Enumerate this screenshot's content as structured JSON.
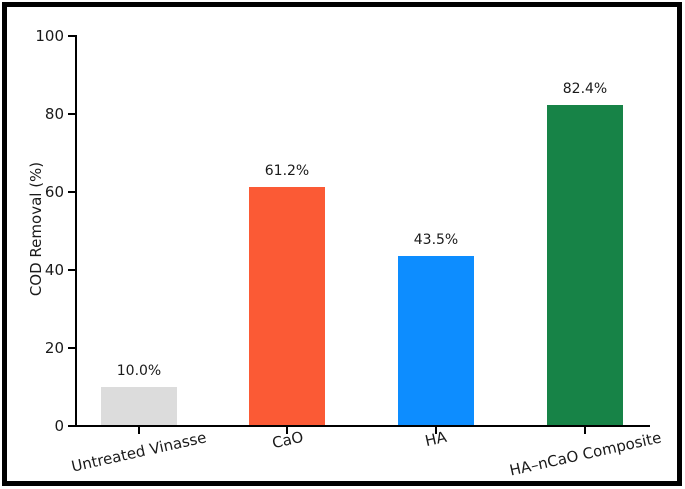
{
  "chart_data": {
    "type": "bar",
    "title": "",
    "xlabel": "",
    "ylabel": "COD Removal (%)",
    "categories": [
      "Untreated Vinasse",
      "CaO",
      "HA",
      "HA–nCaO Composite"
    ],
    "values": [
      10.0,
      61.2,
      43.5,
      82.4
    ],
    "bar_labels": [
      "10.0%",
      "61.2%",
      "43.5%",
      "82.4%"
    ],
    "bar_colors": [
      "#dcdcdc",
      "#fb5a35",
      "#0d8dff",
      "#178347"
    ],
    "ylim": [
      0,
      100
    ],
    "yticks": [
      0,
      20,
      40,
      60,
      80,
      100
    ],
    "grid": false,
    "legend": "none",
    "x_tick_rotation_deg": 12.5,
    "spine_color": "#000000",
    "text_color": "#1a1a1a",
    "frame_border_color": "#000000",
    "background_color": "#ffffff"
  }
}
